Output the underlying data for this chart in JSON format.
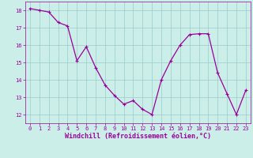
{
  "x": [
    0,
    1,
    2,
    3,
    4,
    5,
    6,
    7,
    8,
    9,
    10,
    11,
    12,
    13,
    14,
    15,
    16,
    17,
    18,
    19,
    20,
    21,
    22,
    23
  ],
  "y": [
    18.1,
    18.0,
    17.9,
    17.3,
    17.1,
    15.1,
    15.9,
    14.7,
    13.7,
    13.1,
    12.6,
    12.8,
    12.3,
    12.0,
    14.0,
    15.1,
    16.0,
    16.6,
    16.65,
    16.65,
    14.4,
    13.2,
    12.0,
    13.4
  ],
  "line_color": "#990099",
  "marker": "+",
  "marker_size": 3,
  "marker_linewidth": 0.8,
  "bg_color": "#cceee8",
  "grid_color": "#99cccc",
  "xlabel": "Windchill (Refroidissement éolien,°C)",
  "tick_color": "#990099",
  "ylim": [
    11.5,
    18.5
  ],
  "xlim": [
    -0.5,
    23.5
  ],
  "yticks": [
    12,
    13,
    14,
    15,
    16,
    17,
    18
  ],
  "xticks": [
    0,
    1,
    2,
    3,
    4,
    5,
    6,
    7,
    8,
    9,
    10,
    11,
    12,
    13,
    14,
    15,
    16,
    17,
    18,
    19,
    20,
    21,
    22,
    23
  ],
  "tick_fontsize": 5.0,
  "xlabel_fontsize": 6.0,
  "linewidth": 0.9
}
